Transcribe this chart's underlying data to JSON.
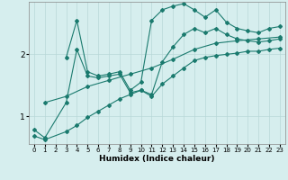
{
  "xlabel": "Humidex (Indice chaleur)",
  "xlim": [
    -0.5,
    23.5
  ],
  "ylim": [
    0.55,
    2.85
  ],
  "xticks": [
    0,
    1,
    2,
    3,
    4,
    5,
    6,
    7,
    8,
    9,
    10,
    11,
    12,
    13,
    14,
    15,
    16,
    17,
    18,
    19,
    20,
    21,
    22,
    23
  ],
  "yticks": [
    1,
    2
  ],
  "bg_color": "#d6eeee",
  "line_color": "#1a7a6e",
  "grid_color": "#b8d8d8",
  "lines": [
    {
      "x": [
        3,
        4,
        5,
        6,
        7,
        8,
        9,
        10,
        11,
        12,
        13,
        14,
        15,
        16,
        17,
        18,
        19,
        20,
        21,
        22,
        23
      ],
      "y": [
        1.95,
        2.55,
        1.72,
        1.65,
        1.68,
        1.72,
        1.42,
        1.55,
        2.55,
        2.72,
        2.78,
        2.82,
        2.72,
        2.6,
        2.72,
        2.52,
        2.42,
        2.38,
        2.35,
        2.42,
        2.45
      ]
    },
    {
      "x": [
        0,
        1,
        3,
        4,
        5,
        6,
        7,
        8,
        9,
        10,
        11,
        12,
        13,
        14,
        15,
        16,
        17,
        18,
        19,
        20,
        21,
        22,
        23
      ],
      "y": [
        0.78,
        0.65,
        1.22,
        2.08,
        1.65,
        1.62,
        1.65,
        1.68,
        1.38,
        1.42,
        1.35,
        1.88,
        2.12,
        2.32,
        2.42,
        2.35,
        2.42,
        2.32,
        2.25,
        2.22,
        2.2,
        2.22,
        2.25
      ]
    },
    {
      "x": [
        1,
        3,
        5,
        7,
        9,
        11,
        13,
        15,
        17,
        19,
        21,
        23
      ],
      "y": [
        1.22,
        1.32,
        1.48,
        1.58,
        1.68,
        1.78,
        1.92,
        2.08,
        2.18,
        2.22,
        2.25,
        2.28
      ]
    },
    {
      "x": [
        0,
        1,
        3,
        4,
        5,
        6,
        7,
        8,
        9,
        10,
        11,
        12,
        13,
        14,
        15,
        16,
        17,
        18,
        19,
        20,
        21,
        22,
        23
      ],
      "y": [
        0.68,
        0.62,
        0.75,
        0.85,
        0.98,
        1.08,
        1.18,
        1.28,
        1.35,
        1.42,
        1.32,
        1.52,
        1.65,
        1.78,
        1.9,
        1.95,
        1.98,
        2.0,
        2.02,
        2.05,
        2.05,
        2.08,
        2.1
      ]
    }
  ]
}
